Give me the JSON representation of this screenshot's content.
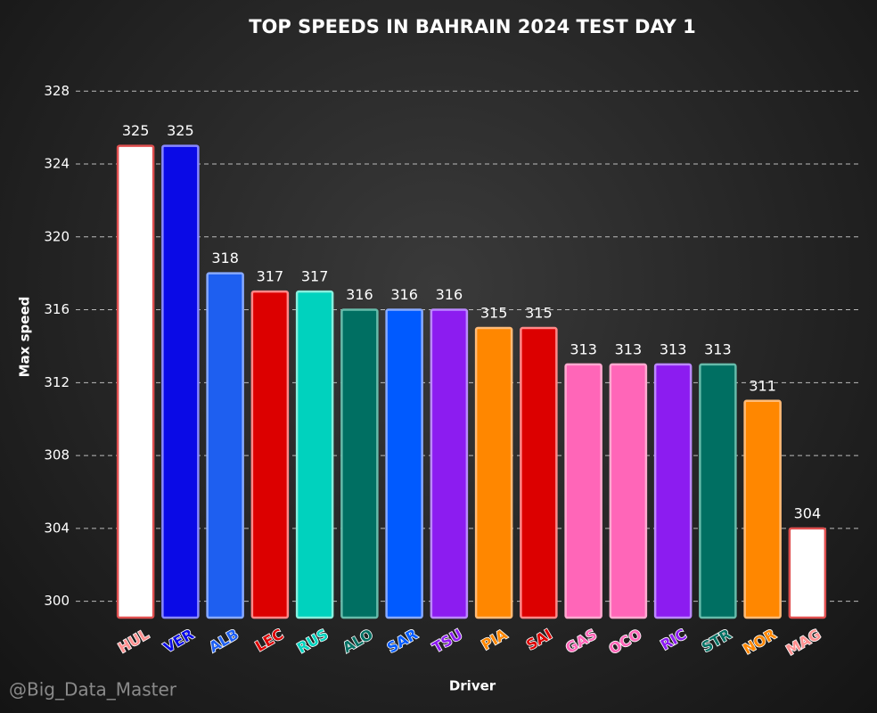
{
  "chart_data": {
    "type": "bar",
    "title": "TOP SPEEDS IN BAHRAIN 2024 TEST DAY 1",
    "xlabel": "Driver",
    "ylabel": "Max speed",
    "annotation": "@Big_Data_Master",
    "categories": [
      "HUL",
      "VER",
      "ALB",
      "LEC",
      "RUS",
      "ALO",
      "SAR",
      "TSU",
      "PIA",
      "SAI",
      "GAS",
      "OCO",
      "RIC",
      "STR",
      "NOR",
      "MAG"
    ],
    "values": [
      325,
      325,
      318,
      317,
      317,
      316,
      316,
      316,
      315,
      315,
      313,
      313,
      313,
      313,
      311,
      304
    ],
    "colors": [
      "#ffffff",
      "#0a0ae6",
      "#1e5ff0",
      "#dc0000",
      "#00d2be",
      "#006f62",
      "#005aff",
      "#8c1cf0",
      "#ff8700",
      "#dc0000",
      "#ff66b8",
      "#ff66b8",
      "#8c1cf0",
      "#006f62",
      "#ff8700",
      "#ffffff"
    ],
    "edgecolors": [
      "#e05050",
      "#8888ff",
      "#88aaff",
      "#ff8888",
      "#88eedd",
      "#66bbaa",
      "#88aaff",
      "#bb88ff",
      "#ffbb77",
      "#ff8888",
      "#ffaad0",
      "#ffaad0",
      "#bb88ff",
      "#66bbaa",
      "#ffbb77",
      "#e05050"
    ],
    "ylim": [
      299.1,
      328.6
    ],
    "yticks": [
      300,
      304,
      308,
      312,
      316,
      320,
      324,
      328
    ],
    "grid": true
  }
}
